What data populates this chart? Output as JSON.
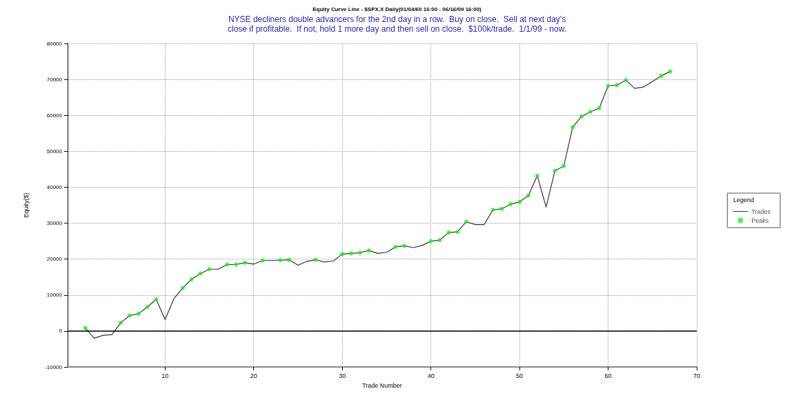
{
  "chart_data": {
    "type": "line",
    "title": "Equity Curve Line - $SPX.X Daily(01/04/60 16:00 - 06/16/09 16:00)",
    "subtitle": "NYSE decliners double advancers for the 2nd day in a row.  Buy on close.  Sell at next day's\nclose if profitable.  If not, hold 1 more day and then sell on close.  $100k/trade.  1/1/99 - now.",
    "xlabel": "Trade Number",
    "ylabel": "Equity($)",
    "legend_title": "Legend",
    "x": [
      1,
      2,
      3,
      4,
      5,
      6,
      7,
      8,
      9,
      10,
      11,
      12,
      13,
      14,
      15,
      16,
      17,
      18,
      19,
      20,
      21,
      22,
      23,
      24,
      25,
      26,
      27,
      28,
      29,
      30,
      31,
      32,
      33,
      34,
      35,
      36,
      37,
      38,
      39,
      40,
      41,
      42,
      43,
      44,
      45,
      46,
      47,
      48,
      49,
      50,
      51,
      52,
      53,
      54,
      55,
      56,
      57,
      58,
      59,
      60,
      61,
      62,
      63,
      64,
      65,
      66,
      67
    ],
    "series": [
      {
        "name": "Trades",
        "color": "#333333",
        "marker": "none",
        "values": [
          800,
          -2000,
          -1200,
          -1000,
          2300,
          4300,
          4800,
          6700,
          8800,
          3200,
          9000,
          12000,
          14400,
          16000,
          17200,
          17200,
          18500,
          18500,
          19000,
          18600,
          19600,
          19600,
          19700,
          19800,
          18300,
          19400,
          19800,
          19200,
          19500,
          21400,
          21600,
          21800,
          22400,
          21600,
          21900,
          23400,
          23700,
          23200,
          23800,
          25000,
          25300,
          27400,
          27600,
          30400,
          29600,
          29600,
          33700,
          34000,
          35300,
          35900,
          37700,
          43200,
          34500,
          44600,
          45900,
          56700,
          59700,
          61000,
          62000,
          68200,
          68400,
          69800,
          67500,
          67900,
          69400,
          71000,
          72200
        ]
      },
      {
        "name": "Peaks",
        "type": "scatter",
        "color": "#22ee22",
        "marker": "circle",
        "values": [
          800,
          null,
          null,
          null,
          2300,
          4300,
          4800,
          6700,
          8800,
          null,
          null,
          12000,
          14400,
          16000,
          17200,
          null,
          18500,
          18500,
          19000,
          null,
          19600,
          null,
          19700,
          19800,
          null,
          null,
          19800,
          null,
          null,
          21400,
          21600,
          21800,
          22400,
          null,
          null,
          23400,
          23700,
          null,
          null,
          25000,
          25300,
          27400,
          27600,
          30400,
          null,
          null,
          33700,
          34000,
          35300,
          35900,
          37700,
          43200,
          null,
          44600,
          45900,
          56700,
          59700,
          61000,
          62000,
          68200,
          68400,
          69800,
          null,
          null,
          null,
          71000,
          72200
        ]
      }
    ],
    "xlim": [
      -1,
      70
    ],
    "xticks": [
      10,
      20,
      30,
      40,
      50,
      60,
      70
    ],
    "ylim": [
      -10000,
      80000
    ],
    "yticks": [
      -10000,
      0,
      10000,
      20000,
      30000,
      40000,
      50000,
      60000,
      70000,
      80000
    ],
    "ref_lines": [
      {
        "axis": "y",
        "value": 0,
        "color": "#000000",
        "line_style": "solid"
      }
    ],
    "grid": true,
    "legend": "right"
  }
}
